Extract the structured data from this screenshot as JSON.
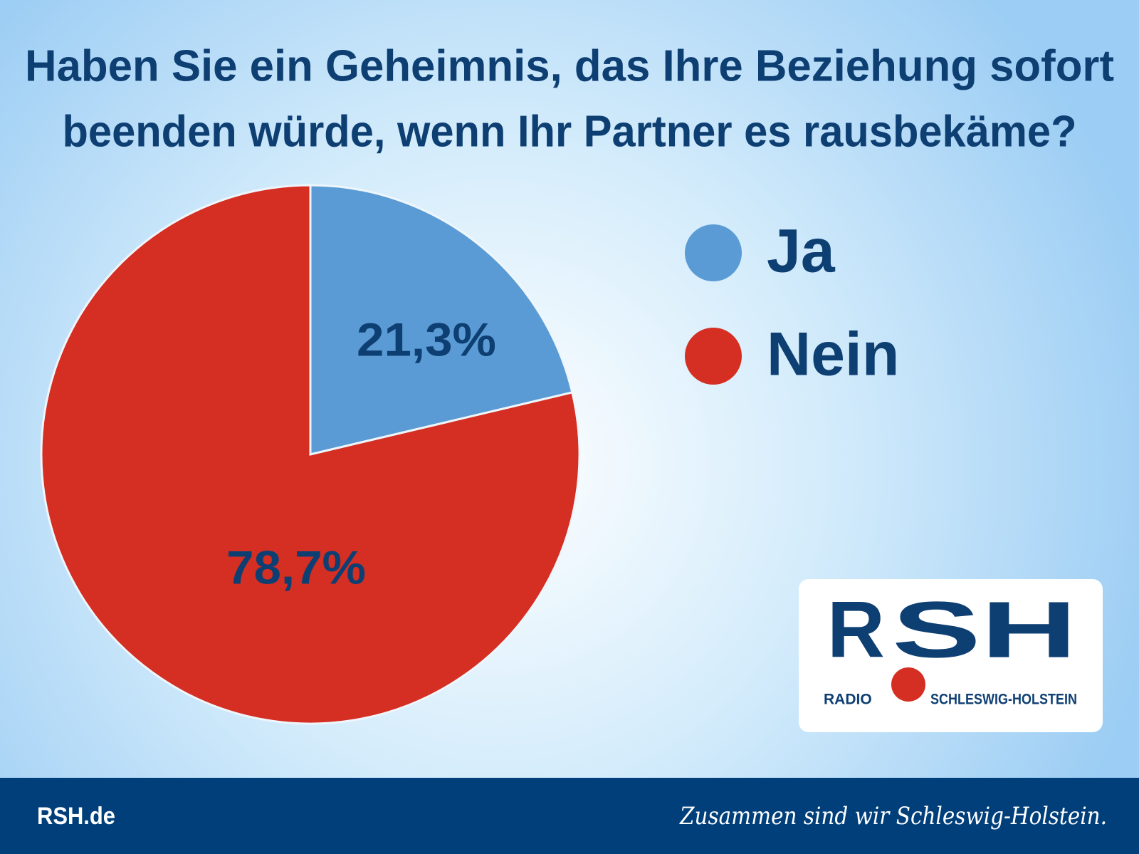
{
  "chart_data": {
    "type": "pie",
    "title": [
      "Haben Sie ein Geheimnis, das Ihre Beziehung sofort",
      "beenden würde, wenn Ihr Partner es rausbekäme?"
    ],
    "categories": [
      "Ja",
      "Nein"
    ],
    "values": [
      21.3,
      78.7
    ],
    "value_labels": [
      "21,3%",
      "78,7%"
    ],
    "colors": [
      "#5b9bd5",
      "#d52e22"
    ]
  },
  "logo": {
    "letters": [
      "R",
      "SH"
    ],
    "left": "RADIO",
    "right": "SCHLESWIG-HOLSTEIN"
  },
  "footer": {
    "site": "RSH.de",
    "slogan": "Zusammen sind wir Schleswig-Holstein."
  }
}
